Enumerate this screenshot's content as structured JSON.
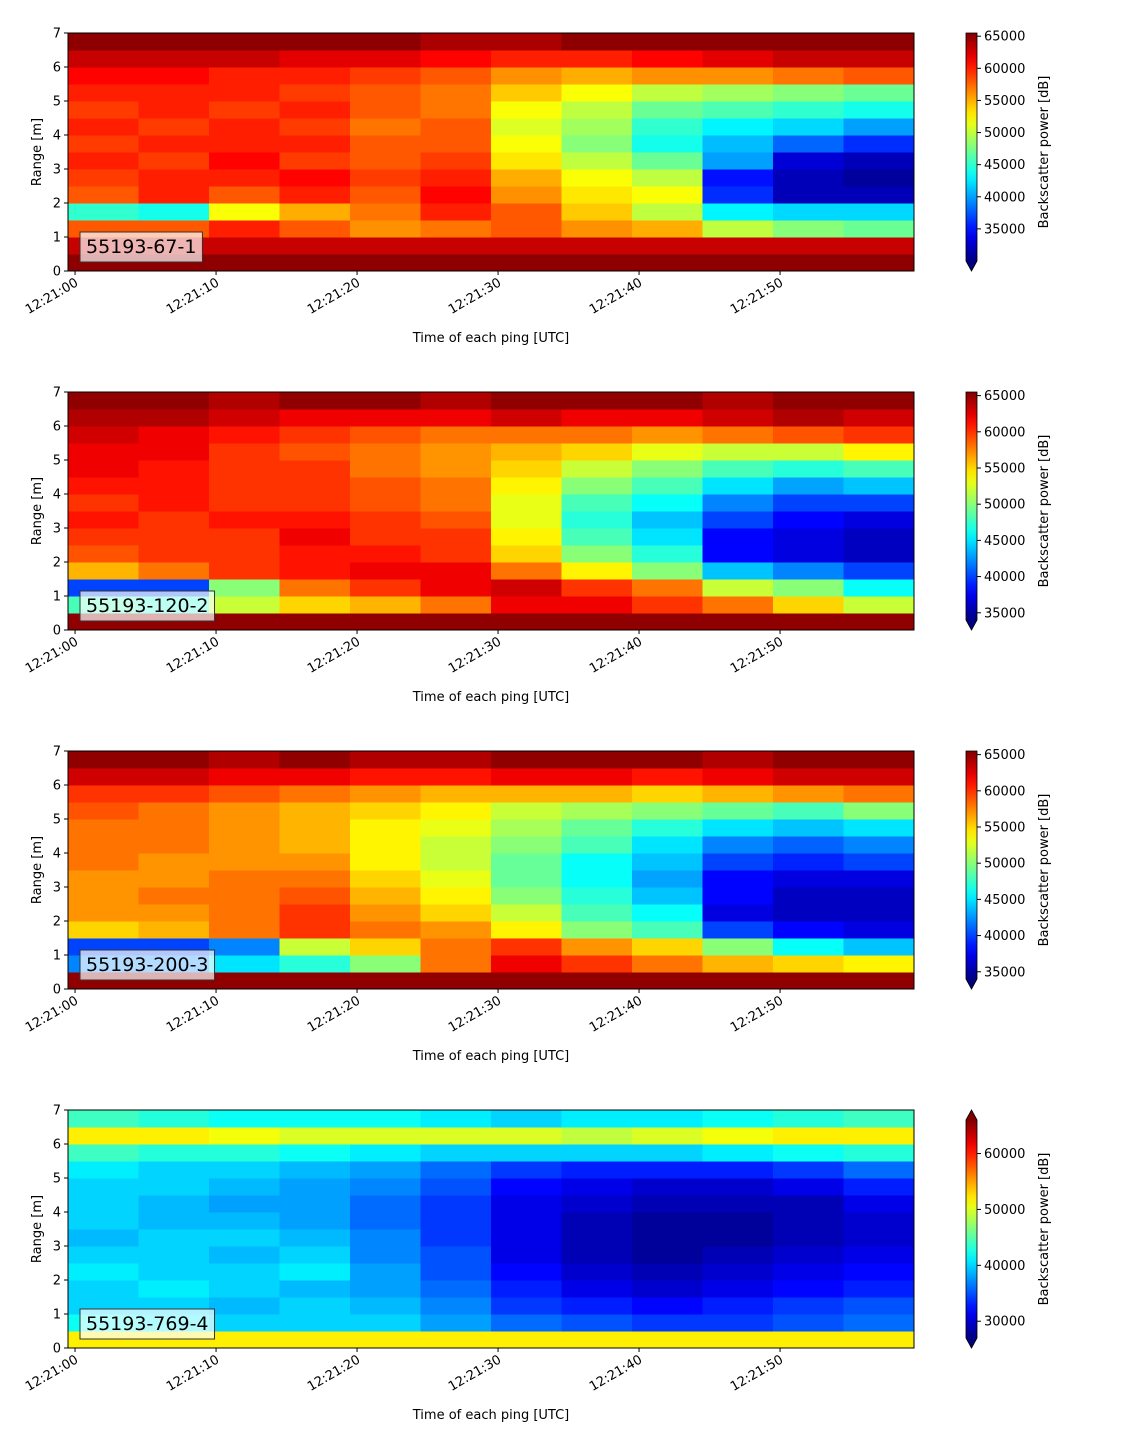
{
  "chart_data": [
    {
      "type": "heatmap",
      "colormap": "jet",
      "label": "55193-67-1",
      "xlabel": "Time of each ping [UTC]",
      "ylabel": "Range [m]",
      "colorbar_label": "Backscatter power [dB]",
      "x": [
        "12:21:02",
        "12:21:07",
        "12:21:12",
        "12:21:17",
        "12:21:22",
        "12:21:27",
        "12:21:32",
        "12:21:37",
        "12:21:42",
        "12:21:47",
        "12:21:52",
        "12:21:57"
      ],
      "y": [
        0.25,
        0.75,
        1.25,
        1.75,
        2.25,
        2.75,
        3.25,
        3.75,
        4.25,
        4.75,
        5.25,
        5.75,
        6.25,
        6.75
      ],
      "z": [
        [
          65000,
          65000,
          65000,
          65000,
          65000,
          65000,
          65000,
          65000,
          65000,
          65000,
          65000,
          65000
        ],
        [
          63000,
          63000,
          63000,
          63000,
          63000,
          63000,
          63000,
          63000,
          63000,
          63000,
          63000,
          63000
        ],
        [
          58000,
          58000,
          60000,
          58000,
          56000,
          57000,
          58000,
          56000,
          55000,
          50000,
          48000,
          47000
        ],
        [
          45000,
          44000,
          52000,
          55000,
          57000,
          60000,
          58000,
          54000,
          50000,
          43000,
          42000,
          42000
        ],
        [
          58000,
          60000,
          58000,
          60000,
          58000,
          61000,
          56000,
          53000,
          52000,
          36000,
          32000,
          32000
        ],
        [
          59000,
          60000,
          60000,
          61000,
          59000,
          60000,
          55000,
          52000,
          50000,
          35000,
          32000,
          31000
        ],
        [
          60000,
          59000,
          61000,
          59000,
          58000,
          59000,
          53000,
          50000,
          47000,
          40000,
          33000,
          32000
        ],
        [
          59000,
          60000,
          60000,
          60000,
          58000,
          58000,
          52000,
          48000,
          44000,
          41000,
          38000,
          36000
        ],
        [
          60000,
          59000,
          60000,
          59000,
          57000,
          58000,
          51000,
          49000,
          45000,
          43000,
          42000,
          40000
        ],
        [
          59000,
          60000,
          59000,
          60000,
          58000,
          57000,
          52000,
          50000,
          47000,
          46000,
          45000,
          44000
        ],
        [
          60000,
          60000,
          60000,
          59000,
          58000,
          57000,
          54000,
          52000,
          50000,
          49000,
          48000,
          47000
        ],
        [
          61000,
          61000,
          60000,
          60000,
          59000,
          58000,
          56000,
          55000,
          56000,
          56000,
          57000,
          58000
        ],
        [
          63000,
          63000,
          63000,
          62000,
          62000,
          61000,
          60000,
          60000,
          61000,
          62000,
          63000,
          63000
        ],
        [
          65000,
          65000,
          65000,
          65000,
          65000,
          64000,
          64000,
          65000,
          65000,
          65000,
          65000,
          65000
        ]
      ],
      "xlim": [
        "12:20:59.5",
        "12:21:59.5"
      ],
      "ylim": [
        0,
        7
      ],
      "xticks": [
        "12:21:00",
        "12:21:10",
        "12:21:20",
        "12:21:30",
        "12:21:40",
        "12:21:50"
      ],
      "yticks": [
        0,
        1,
        2,
        3,
        4,
        5,
        6,
        7
      ],
      "clim": [
        30000,
        65500
      ],
      "cticks": [
        35000,
        40000,
        45000,
        50000,
        55000,
        60000,
        65000
      ],
      "extend": "min"
    },
    {
      "type": "heatmap",
      "colormap": "jet",
      "label": "55193-120-2",
      "xlabel": "Time of each ping [UTC]",
      "ylabel": "Range [m]",
      "colorbar_label": "Backscatter power [dB]",
      "x": [
        "12:21:02",
        "12:21:07",
        "12:21:12",
        "12:21:17",
        "12:21:22",
        "12:21:27",
        "12:21:32",
        "12:21:37",
        "12:21:42",
        "12:21:47",
        "12:21:52",
        "12:21:57"
      ],
      "y": [
        0.25,
        0.75,
        1.25,
        1.75,
        2.25,
        2.75,
        3.25,
        3.75,
        4.25,
        4.75,
        5.25,
        5.75,
        6.25,
        6.75
      ],
      "z": [
        [
          65000,
          65000,
          65000,
          65000,
          65000,
          65000,
          65000,
          65000,
          65000,
          65000,
          65000,
          65000
        ],
        [
          48000,
          47000,
          52000,
          55000,
          56000,
          58000,
          62000,
          62000,
          60000,
          58000,
          55000,
          52000
        ],
        [
          40000,
          40000,
          50000,
          58000,
          60000,
          62000,
          63000,
          60000,
          58000,
          52000,
          50000,
          46000
        ],
        [
          56000,
          58000,
          60000,
          61000,
          62000,
          62000,
          58000,
          54000,
          50000,
          44000,
          42000,
          40000
        ],
        [
          59000,
          60000,
          60000,
          61000,
          61000,
          60000,
          55000,
          50000,
          47000,
          38000,
          37000,
          36000
        ],
        [
          60000,
          60000,
          60000,
          62000,
          60000,
          60000,
          54000,
          48000,
          45000,
          38000,
          37000,
          36000
        ],
        [
          61000,
          60000,
          61000,
          61000,
          60000,
          59000,
          53000,
          47000,
          44000,
          40000,
          38000,
          37000
        ],
        [
          60000,
          61000,
          60000,
          60000,
          59000,
          58000,
          53000,
          48000,
          46000,
          42000,
          40000,
          40000
        ],
        [
          61000,
          61000,
          60000,
          60000,
          59000,
          58000,
          54000,
          50000,
          48000,
          45000,
          43000,
          44000
        ],
        [
          62000,
          61000,
          60000,
          60000,
          58000,
          57000,
          55000,
          52000,
          50000,
          48000,
          47000,
          48000
        ],
        [
          62000,
          62000,
          60000,
          59000,
          58000,
          57000,
          56000,
          55000,
          53000,
          52000,
          52000,
          54000
        ],
        [
          63000,
          62000,
          61000,
          60000,
          59000,
          58000,
          58000,
          58000,
          57000,
          58000,
          59000,
          60000
        ],
        [
          64000,
          64000,
          63000,
          62000,
          62000,
          62000,
          63000,
          62000,
          62000,
          63000,
          64000,
          63000
        ],
        [
          65000,
          65000,
          64000,
          65000,
          65000,
          64000,
          65000,
          65000,
          65000,
          64000,
          65000,
          65000
        ]
      ],
      "xlim": [
        "12:20:59.5",
        "12:21:59.5"
      ],
      "ylim": [
        0,
        7
      ],
      "xticks": [
        "12:21:00",
        "12:21:10",
        "12:21:20",
        "12:21:30",
        "12:21:40",
        "12:21:50"
      ],
      "yticks": [
        0,
        1,
        2,
        3,
        4,
        5,
        6,
        7
      ],
      "clim": [
        34000,
        65500
      ],
      "cticks": [
        35000,
        40000,
        45000,
        50000,
        55000,
        60000,
        65000
      ],
      "extend": "min"
    },
    {
      "type": "heatmap",
      "colormap": "jet",
      "label": "55193-200-3",
      "xlabel": "Time of each ping [UTC]",
      "ylabel": "Range [m]",
      "colorbar_label": "Backscatter power [dB]",
      "x": [
        "12:21:02",
        "12:21:07",
        "12:21:12",
        "12:21:17",
        "12:21:22",
        "12:21:27",
        "12:21:32",
        "12:21:37",
        "12:21:42",
        "12:21:47",
        "12:21:52",
        "12:21:57"
      ],
      "y": [
        0.25,
        0.75,
        1.25,
        1.75,
        2.25,
        2.75,
        3.25,
        3.75,
        4.25,
        4.75,
        5.25,
        5.75,
        6.25,
        6.75
      ],
      "z": [
        [
          65000,
          65000,
          65000,
          65000,
          65000,
          65000,
          65000,
          65000,
          65000,
          65000,
          65000,
          65000
        ],
        [
          42000,
          42000,
          45000,
          47000,
          50000,
          58000,
          62000,
          60000,
          58000,
          56000,
          55000,
          54000
        ],
        [
          40000,
          40000,
          42000,
          52000,
          55000,
          58000,
          60000,
          57000,
          55000,
          50000,
          46000,
          44000
        ],
        [
          55000,
          56000,
          58000,
          60000,
          58000,
          57000,
          54000,
          50000,
          48000,
          40000,
          38000,
          37000
        ],
        [
          57000,
          57000,
          58000,
          60000,
          57000,
          55000,
          52000,
          48000,
          46000,
          37000,
          36000,
          36000
        ],
        [
          57000,
          58000,
          58000,
          59000,
          56000,
          54000,
          50000,
          47000,
          44000,
          38000,
          36000,
          36000
        ],
        [
          57000,
          57000,
          58000,
          58000,
          55000,
          53000,
          49000,
          46000,
          43000,
          38000,
          37000,
          37000
        ],
        [
          58000,
          57000,
          57000,
          57000,
          54000,
          52000,
          49000,
          46000,
          44000,
          40000,
          39000,
          40000
        ],
        [
          58000,
          58000,
          57000,
          56000,
          54000,
          52000,
          50000,
          48000,
          45000,
          42000,
          41000,
          42000
        ],
        [
          58000,
          58000,
          57000,
          56000,
          54000,
          53000,
          51000,
          49000,
          47000,
          45000,
          44000,
          45000
        ],
        [
          59000,
          58000,
          57000,
          56000,
          55000,
          54000,
          52000,
          51000,
          50000,
          49000,
          48000,
          50000
        ],
        [
          60000,
          60000,
          59000,
          58000,
          57000,
          56000,
          56000,
          56000,
          55000,
          56000,
          57000,
          58000
        ],
        [
          63000,
          63000,
          62000,
          62000,
          61000,
          61000,
          62000,
          62000,
          61000,
          62000,
          63000,
          63000
        ],
        [
          65000,
          65000,
          64000,
          65000,
          64000,
          64000,
          65000,
          65000,
          65000,
          64000,
          65000,
          65000
        ]
      ],
      "xlim": [
        "12:20:59.5",
        "12:21:59.5"
      ],
      "ylim": [
        0,
        7
      ],
      "xticks": [
        "12:21:00",
        "12:21:10",
        "12:21:20",
        "12:21:30",
        "12:21:40",
        "12:21:50"
      ],
      "yticks": [
        0,
        1,
        2,
        3,
        4,
        5,
        6,
        7
      ],
      "clim": [
        34000,
        65500
      ],
      "cticks": [
        35000,
        40000,
        45000,
        50000,
        55000,
        60000,
        65000
      ],
      "extend": "min"
    },
    {
      "type": "heatmap",
      "colormap": "jet",
      "label": "55193-769-4",
      "xlabel": "Time of each ping [UTC]",
      "ylabel": "Range [m]",
      "colorbar_label": "Backscatter power [dB]",
      "x": [
        "12:21:02",
        "12:21:07",
        "12:21:12",
        "12:21:17",
        "12:21:22",
        "12:21:27",
        "12:21:32",
        "12:21:37",
        "12:21:42",
        "12:21:47",
        "12:21:52",
        "12:21:57"
      ],
      "y": [
        0.25,
        0.75,
        1.25,
        1.75,
        2.25,
        2.75,
        3.25,
        3.75,
        4.25,
        4.75,
        5.25,
        5.75,
        6.25,
        6.75
      ],
      "z": [
        [
          52000,
          52000,
          52000,
          52000,
          52000,
          52000,
          52000,
          52000,
          52000,
          52000,
          52000,
          52000
        ],
        [
          42000,
          41000,
          40000,
          40000,
          40000,
          38000,
          36000,
          35000,
          34000,
          34000,
          35000,
          36000
        ],
        [
          40000,
          40000,
          39000,
          40000,
          39000,
          37000,
          34000,
          33000,
          32000,
          33000,
          34000,
          35000
        ],
        [
          40000,
          41000,
          40000,
          39000,
          38000,
          36000,
          33000,
          31000,
          30000,
          31000,
          32000,
          33000
        ],
        [
          41000,
          40000,
          40000,
          41000,
          38000,
          35000,
          32000,
          30000,
          29000,
          30000,
          31000,
          32000
        ],
        [
          40000,
          40000,
          39000,
          40000,
          37000,
          35000,
          31000,
          29000,
          28000,
          29000,
          30000,
          31000
        ],
        [
          39000,
          40000,
          40000,
          39000,
          37000,
          34000,
          31000,
          29000,
          28000,
          28000,
          29000,
          30000
        ],
        [
          40000,
          39000,
          39000,
          38000,
          36000,
          34000,
          31000,
          29000,
          28000,
          28000,
          29000,
          30000
        ],
        [
          40000,
          39000,
          38000,
          38000,
          36000,
          34000,
          31000,
          30000,
          29000,
          29000,
          29000,
          31000
        ],
        [
          40000,
          40000,
          39000,
          38000,
          37000,
          35000,
          32000,
          31000,
          30000,
          30000,
          31000,
          33000
        ],
        [
          41000,
          40000,
          40000,
          39000,
          38000,
          36000,
          34000,
          33000,
          33000,
          33000,
          34000,
          36000
        ],
        [
          44000,
          43000,
          43000,
          42000,
          41000,
          40000,
          40000,
          40000,
          40000,
          41000,
          42000,
          43000
        ],
        [
          52000,
          52000,
          51000,
          50000,
          50000,
          50000,
          50000,
          49000,
          50000,
          51000,
          52000,
          52000
        ],
        [
          44000,
          43000,
          42000,
          42000,
          42000,
          41000,
          40000,
          41000,
          41000,
          42000,
          43000,
          44000
        ]
      ],
      "xlim": [
        "12:20:59.5",
        "12:21:59.5"
      ],
      "ylim": [
        0,
        7
      ],
      "xticks": [
        "12:21:00",
        "12:21:10",
        "12:21:20",
        "12:21:30",
        "12:21:40",
        "12:21:50"
      ],
      "yticks": [
        0,
        1,
        2,
        3,
        4,
        5,
        6,
        7
      ],
      "clim": [
        27000,
        66000
      ],
      "cticks": [
        30000,
        40000,
        50000,
        60000
      ],
      "extend": "both"
    }
  ]
}
